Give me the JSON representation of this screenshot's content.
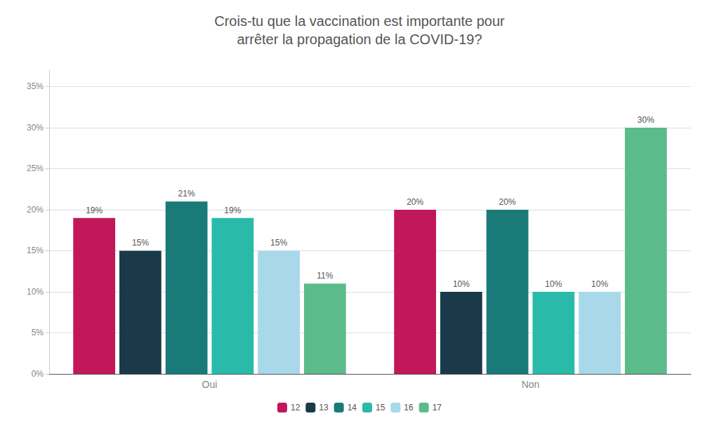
{
  "chart_data": {
    "type": "bar",
    "title": "Crois-tu que la vaccination est importante pour\narrêter la propagation de la COVID-19?",
    "categories": [
      "Oui",
      "Non"
    ],
    "series": [
      {
        "name": "12",
        "color": "#C0185A",
        "values": [
          19,
          20
        ],
        "value_labels": [
          "19%",
          "20%"
        ]
      },
      {
        "name": "13",
        "color": "#1A3A4A",
        "values": [
          15,
          10
        ],
        "value_labels": [
          "15%",
          "10%"
        ]
      },
      {
        "name": "14",
        "color": "#1A7A78",
        "values": [
          21,
          20
        ],
        "value_labels": [
          "21%",
          "20%"
        ]
      },
      {
        "name": "15",
        "color": "#2ABAAA",
        "values": [
          19,
          10
        ],
        "value_labels": [
          "19%",
          "10%"
        ]
      },
      {
        "name": "16",
        "color": "#A8D8EA",
        "values": [
          15,
          10
        ],
        "value_labels": [
          "15%",
          "10%"
        ]
      },
      {
        "name": "17",
        "color": "#5CBB8A",
        "values": [
          11,
          30
        ],
        "value_labels": [
          "11%",
          "30%"
        ]
      }
    ],
    "ylim": [
      0,
      37
    ],
    "yticks": [
      {
        "value": 0,
        "label": "0%"
      },
      {
        "value": 5,
        "label": "5%"
      },
      {
        "value": 10,
        "label": "10%"
      },
      {
        "value": 15,
        "label": "15%"
      },
      {
        "value": 20,
        "label": "20%"
      },
      {
        "value": 25,
        "label": "25%"
      },
      {
        "value": 30,
        "label": "30%"
      },
      {
        "value": 35,
        "label": "35%"
      }
    ],
    "grid": true,
    "legend": "bottom",
    "data_labels": true
  }
}
